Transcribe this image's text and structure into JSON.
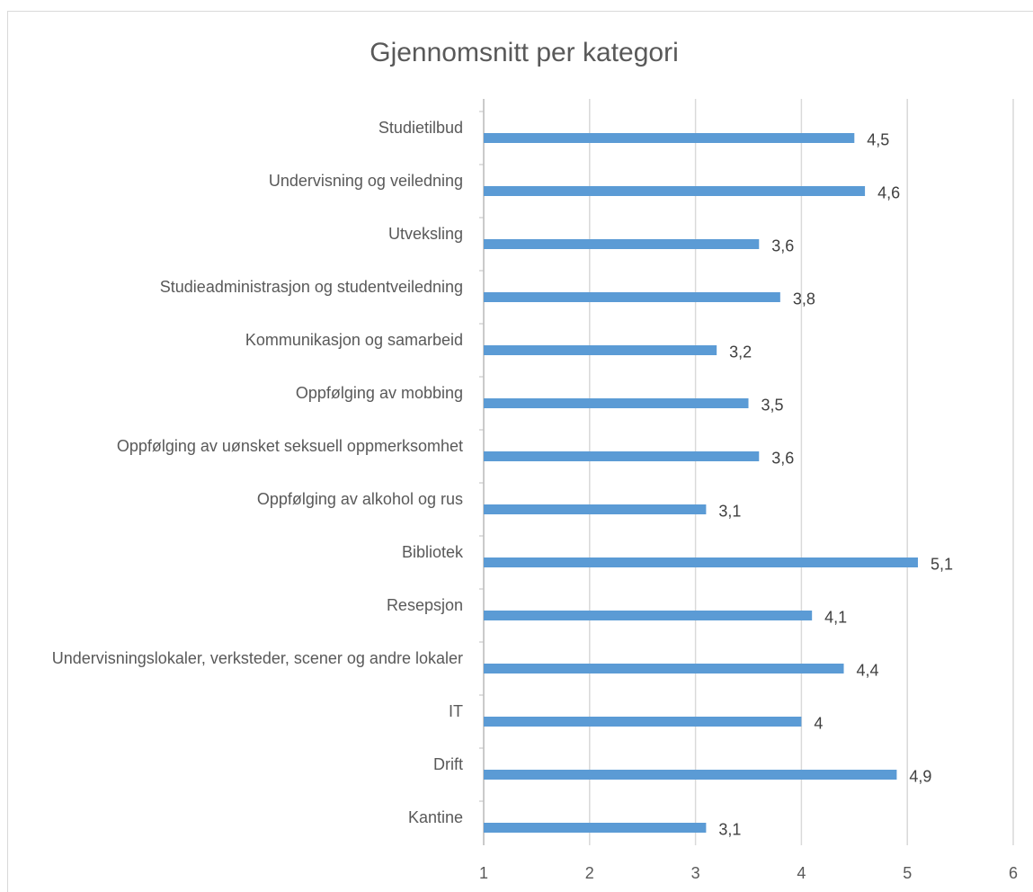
{
  "chart_data": {
    "type": "barh",
    "title": "Gjennomsnitt per kategori",
    "categories": [
      "Studietilbud",
      "Undervisning og veiledning",
      "Utveksling",
      "Studieadministrasjon og studentveiledning",
      "Kommunikasjon og samarbeid",
      "Oppfølging av mobbing",
      "Oppfølging av uønsket seksuell oppmerksomhet",
      "Oppfølging av alkohol og rus",
      "Bibliotek",
      "Resepsjon",
      "Undervisningslokaler, verksteder, scener og andre lokaler",
      "IT",
      "Drift",
      "Kantine"
    ],
    "values": [
      4.5,
      4.6,
      3.6,
      3.8,
      3.2,
      3.5,
      3.6,
      3.1,
      5.1,
      4.1,
      4.4,
      4,
      4.9,
      3.1
    ],
    "value_labels": [
      "4,5",
      "4,6",
      "3,6",
      "3,8",
      "3,2",
      "3,5",
      "3,6",
      "3,1",
      "5,1",
      "4,1",
      "4,4",
      "4",
      "4,9",
      "3,1"
    ],
    "color": "#5b9bd5",
    "xlim": [
      1,
      6
    ],
    "xticks": [
      1,
      2,
      3,
      4,
      5,
      6
    ],
    "grid": true
  }
}
